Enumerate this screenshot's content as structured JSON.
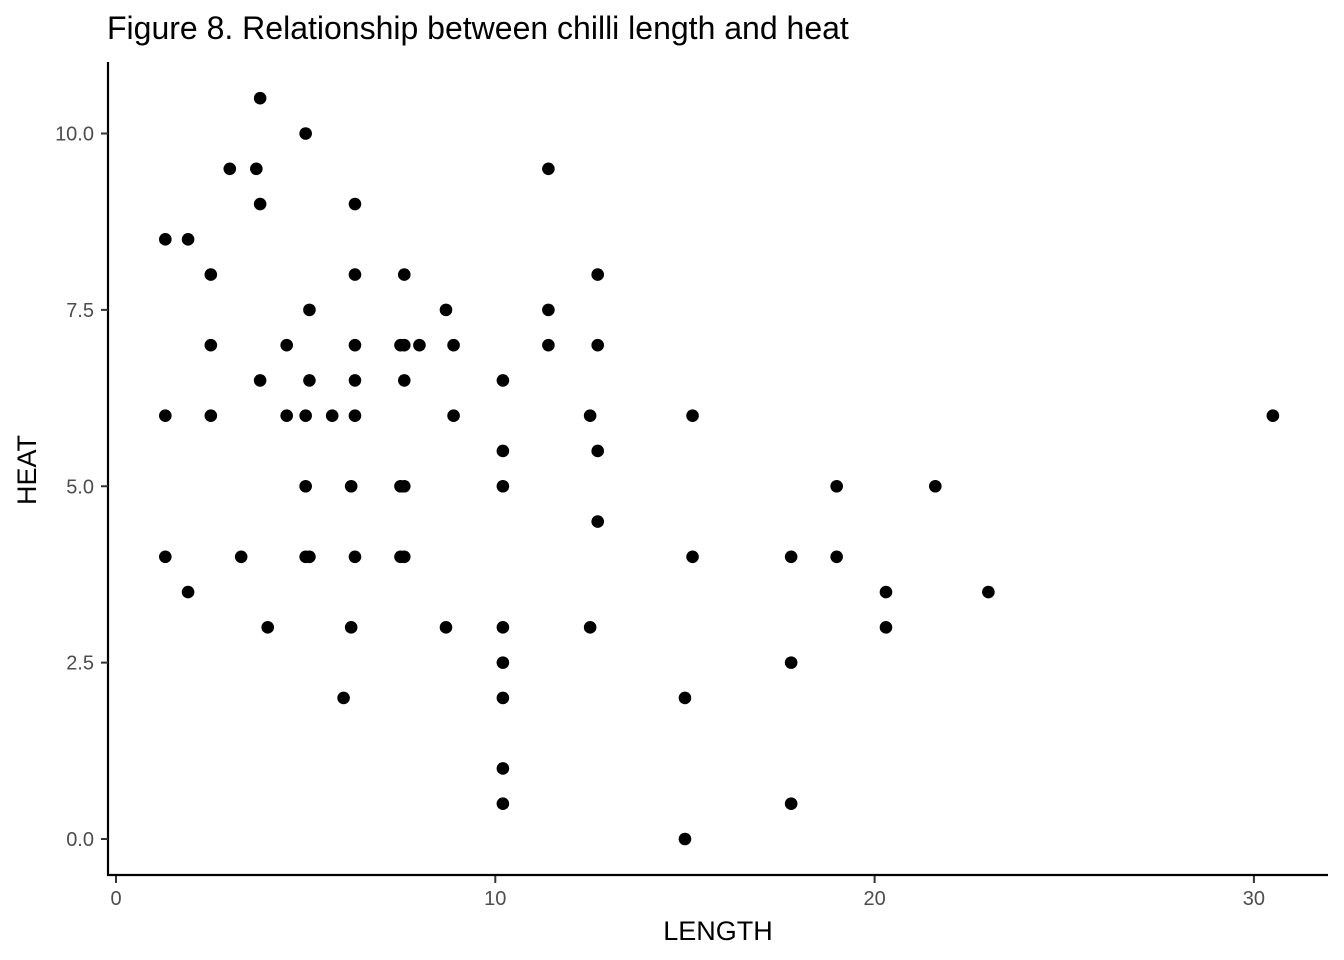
{
  "chart_data": {
    "type": "scatter",
    "title": "Figure 8. Relationship between chilli length and heat",
    "xlabel": "LENGTH",
    "ylabel": "HEAT",
    "xlim": [
      -0.2,
      32
    ],
    "ylim": [
      -0.5,
      11
    ],
    "x_ticks": [
      0,
      10,
      20,
      30
    ],
    "x_tick_labels": [
      "0",
      "10",
      "20",
      "30"
    ],
    "y_ticks": [
      0,
      2.5,
      5,
      7.5,
      10
    ],
    "y_tick_labels": [
      "0.0",
      "2.5",
      "5.0",
      "7.5",
      "10.0"
    ],
    "grid": false,
    "point_color": "#000000",
    "points": [
      {
        "x": 1.3,
        "y": 8.5
      },
      {
        "x": 1.9,
        "y": 8.5
      },
      {
        "x": 1.3,
        "y": 6.0
      },
      {
        "x": 1.3,
        "y": 4.0
      },
      {
        "x": 1.9,
        "y": 3.5
      },
      {
        "x": 2.5,
        "y": 8.0
      },
      {
        "x": 2.5,
        "y": 7.0
      },
      {
        "x": 2.5,
        "y": 6.0
      },
      {
        "x": 3.0,
        "y": 9.5
      },
      {
        "x": 3.3,
        "y": 4.0
      },
      {
        "x": 3.7,
        "y": 9.5
      },
      {
        "x": 3.8,
        "y": 10.5
      },
      {
        "x": 3.8,
        "y": 9.0
      },
      {
        "x": 3.8,
        "y": 6.5
      },
      {
        "x": 4.0,
        "y": 3.0
      },
      {
        "x": 4.5,
        "y": 7.0
      },
      {
        "x": 4.5,
        "y": 6.0
      },
      {
        "x": 5.0,
        "y": 10.0
      },
      {
        "x": 5.1,
        "y": 7.5
      },
      {
        "x": 5.1,
        "y": 6.5
      },
      {
        "x": 5.0,
        "y": 6.0
      },
      {
        "x": 5.0,
        "y": 5.0
      },
      {
        "x": 5.0,
        "y": 4.0
      },
      {
        "x": 5.1,
        "y": 4.0
      },
      {
        "x": 5.7,
        "y": 6.0
      },
      {
        "x": 6.0,
        "y": 2.0
      },
      {
        "x": 6.3,
        "y": 9.0
      },
      {
        "x": 6.3,
        "y": 8.0
      },
      {
        "x": 6.3,
        "y": 7.0
      },
      {
        "x": 6.3,
        "y": 6.5
      },
      {
        "x": 6.3,
        "y": 6.0
      },
      {
        "x": 6.2,
        "y": 5.0
      },
      {
        "x": 6.3,
        "y": 4.0
      },
      {
        "x": 6.2,
        "y": 3.0
      },
      {
        "x": 7.6,
        "y": 8.0
      },
      {
        "x": 7.5,
        "y": 7.0
      },
      {
        "x": 7.6,
        "y": 7.0
      },
      {
        "x": 7.6,
        "y": 6.5
      },
      {
        "x": 7.5,
        "y": 5.0
      },
      {
        "x": 7.6,
        "y": 5.0
      },
      {
        "x": 7.5,
        "y": 4.0
      },
      {
        "x": 7.6,
        "y": 4.0
      },
      {
        "x": 8.0,
        "y": 7.0
      },
      {
        "x": 8.7,
        "y": 7.5
      },
      {
        "x": 8.9,
        "y": 7.0
      },
      {
        "x": 8.9,
        "y": 6.0
      },
      {
        "x": 8.7,
        "y": 3.0
      },
      {
        "x": 10.2,
        "y": 6.5
      },
      {
        "x": 10.2,
        "y": 5.5
      },
      {
        "x": 10.2,
        "y": 5.0
      },
      {
        "x": 10.2,
        "y": 3.0
      },
      {
        "x": 10.2,
        "y": 2.5
      },
      {
        "x": 10.2,
        "y": 2.0
      },
      {
        "x": 10.2,
        "y": 1.0
      },
      {
        "x": 10.2,
        "y": 0.5
      },
      {
        "x": 11.4,
        "y": 9.5
      },
      {
        "x": 11.4,
        "y": 7.5
      },
      {
        "x": 11.4,
        "y": 7.0
      },
      {
        "x": 12.7,
        "y": 8.0
      },
      {
        "x": 12.7,
        "y": 7.0
      },
      {
        "x": 12.5,
        "y": 6.0
      },
      {
        "x": 12.7,
        "y": 5.5
      },
      {
        "x": 12.7,
        "y": 4.5
      },
      {
        "x": 12.5,
        "y": 3.0
      },
      {
        "x": 15.2,
        "y": 6.0
      },
      {
        "x": 15.2,
        "y": 4.0
      },
      {
        "x": 15.0,
        "y": 2.0
      },
      {
        "x": 15.0,
        "y": 0.0
      },
      {
        "x": 17.8,
        "y": 4.0
      },
      {
        "x": 17.8,
        "y": 2.5
      },
      {
        "x": 17.8,
        "y": 0.5
      },
      {
        "x": 19.0,
        "y": 5.0
      },
      {
        "x": 19.0,
        "y": 4.0
      },
      {
        "x": 20.3,
        "y": 3.5
      },
      {
        "x": 20.3,
        "y": 3.0
      },
      {
        "x": 21.6,
        "y": 5.0
      },
      {
        "x": 23.0,
        "y": 3.5
      },
      {
        "x": 30.5,
        "y": 6.0
      }
    ]
  }
}
